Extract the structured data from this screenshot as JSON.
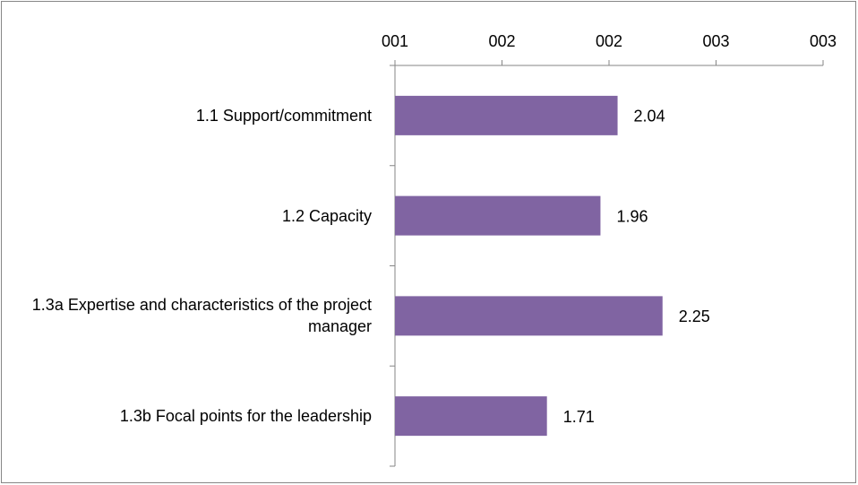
{
  "chart_data": {
    "type": "hbar",
    "categories": [
      "1.1 Support/commitment",
      "1.2 Capacity",
      "1.3a Expertise and characteristics of the project manager",
      "1.3b Focal points for the leadership"
    ],
    "values": [
      2.04,
      1.96,
      2.25,
      1.71
    ],
    "color": "#8064a2",
    "xlim": [
      1,
      3
    ],
    "xticks": [
      {
        "value": 1,
        "label": "001"
      },
      {
        "value": 1.5,
        "label": "002"
      },
      {
        "value": 2,
        "label": "002"
      },
      {
        "value": 2.5,
        "label": "003"
      },
      {
        "value": 3,
        "label": "003"
      }
    ],
    "axis_position": "top",
    "grid": false
  }
}
